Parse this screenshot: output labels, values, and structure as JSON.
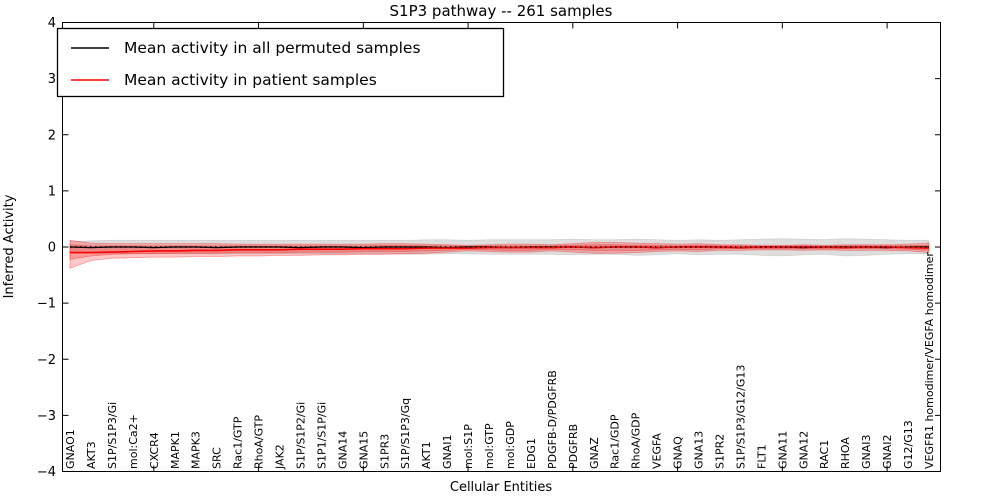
{
  "title": "S1P3 pathway -- 261 samples",
  "axes": {
    "ylabel": "Inferred Activity",
    "xlabel": "Cellular Entities",
    "yticks": [
      "4",
      "3",
      "2",
      "1",
      "0",
      "−1",
      "−2",
      "−3",
      "−4"
    ],
    "ylim": [
      -4,
      4
    ]
  },
  "legend": {
    "items": [
      {
        "label": "Mean activity in all permuted samples",
        "color": "#000000"
      },
      {
        "label": "Mean activity in patient samples",
        "color": "#ff0000"
      }
    ]
  },
  "colors": {
    "permuted_line": "#000000",
    "patient_line": "#ff0000",
    "permuted_band": "rgba(0,0,0,0.13)",
    "patient_band": "rgba(255,0,0,0.22)",
    "zero_line": "#000000",
    "frame": "#000000",
    "background": "#ffffff"
  },
  "chart_data": {
    "type": "line",
    "title": "S1P3 pathway -- 261 samples",
    "xlabel": "Cellular Entities",
    "ylabel": "Inferred Activity",
    "ylim": [
      -4,
      4
    ],
    "grid": false,
    "legend_position": "upper left",
    "zero_line": {
      "style": "dotted",
      "color": "#000000",
      "y": 0
    },
    "categories": [
      "GNAO1",
      "AKT3",
      "S1P/S1P3/Gi",
      "mol:Ca2+",
      "CXCR4",
      "MAPK1",
      "MAPK3",
      "SRC",
      "Rac1/GTP",
      "RhoA/GTP",
      "JAK2",
      "S1P/S1P2/Gi",
      "S1P1/S1P/Gi",
      "GNA14",
      "GNA15",
      "S1PR3",
      "S1P/S1P3/Gq",
      "AKT1",
      "GNAI1",
      "mol:S1P",
      "mol:GTP",
      "mol:GDP",
      "EDG1",
      "PDGFB-D/PDGFRB",
      "PDGFRB",
      "GNAZ",
      "Rac1/GDP",
      "RhoA/GDP",
      "VEGFA",
      "GNAQ",
      "GNA13",
      "S1PR2",
      "S1P/S1P3/G12/G13",
      "FLT1",
      "GNA11",
      "GNA12",
      "RAC1",
      "RHOA",
      "GNAI3",
      "GNAI2",
      "G12/G13",
      "VEGFR1 homodimer/VEGFA homodimer"
    ],
    "series": [
      {
        "name": "Mean activity in all permuted samples",
        "color": "#000000",
        "values": [
          0,
          -0.01,
          0,
          0,
          -0.01,
          0,
          0,
          -0.01,
          0,
          0,
          0,
          -0.01,
          0,
          0,
          -0.01,
          0,
          0,
          0,
          -0.01,
          0,
          0,
          -0.01,
          0,
          0,
          0,
          -0.01,
          0,
          0,
          -0.01,
          0,
          0,
          0,
          -0.01,
          0,
          0,
          -0.01,
          0,
          0,
          0,
          -0.01,
          0,
          0
        ]
      },
      {
        "name": "Mean activity in patient samples",
        "color": "#ff0000",
        "values": [
          -0.1,
          -0.1,
          -0.09,
          -0.08,
          -0.07,
          -0.07,
          -0.06,
          -0.06,
          -0.05,
          -0.05,
          -0.05,
          -0.04,
          -0.04,
          -0.04,
          -0.03,
          -0.03,
          -0.03,
          -0.02,
          -0.02,
          -0.02,
          -0.01,
          -0.01,
          -0.01,
          -0.01,
          0,
          -0.01,
          0,
          0,
          -0.01,
          0,
          0,
          0,
          -0.01,
          0,
          0,
          0,
          0,
          -0.01,
          0,
          0,
          -0.01,
          -0.02
        ]
      }
    ],
    "bands": [
      {
        "name": "permuted-samples-std-band",
        "color": "rgba(0,0,0,0.13)",
        "edge": "rgba(0,0,0,0.10)",
        "upper": [
          0.1,
          0.11,
          0.12,
          0.12,
          0.12,
          0.12,
          0.12,
          0.12,
          0.12,
          0.12,
          0.12,
          0.12,
          0.12,
          0.12,
          0.12,
          0.12,
          0.12,
          0.13,
          0.13,
          0.12,
          0.13,
          0.13,
          0.13,
          0.13,
          0.14,
          0.13,
          0.13,
          0.14,
          0.13,
          0.12,
          0.13,
          0.12,
          0.13,
          0.14,
          0.15,
          0.14,
          0.13,
          0.15,
          0.14,
          0.13,
          0.12,
          0.12
        ],
        "lower": [
          -0.1,
          -0.11,
          -0.12,
          -0.12,
          -0.12,
          -0.12,
          -0.12,
          -0.12,
          -0.12,
          -0.12,
          -0.12,
          -0.12,
          -0.12,
          -0.12,
          -0.12,
          -0.12,
          -0.13,
          -0.13,
          -0.12,
          -0.12,
          -0.13,
          -0.13,
          -0.13,
          -0.13,
          -0.14,
          -0.13,
          -0.13,
          -0.15,
          -0.14,
          -0.12,
          -0.14,
          -0.13,
          -0.13,
          -0.15,
          -0.16,
          -0.14,
          -0.13,
          -0.16,
          -0.15,
          -0.13,
          -0.12,
          -0.12
        ]
      },
      {
        "name": "patient-samples-std-band-outer",
        "color": "rgba(255,0,0,0.22)",
        "edge": "rgba(255,0,0,0.35)",
        "upper": [
          0.12,
          0.07,
          0.06,
          0.06,
          0.06,
          0.06,
          0.06,
          0.06,
          0.05,
          0.05,
          0.05,
          0.05,
          0.05,
          0.05,
          0.05,
          0.06,
          0.06,
          0.05,
          0.04,
          0.03,
          0.04,
          0.05,
          0.05,
          0.04,
          0.06,
          0.08,
          0.08,
          0.07,
          0.06,
          0.05,
          0.06,
          0.04,
          0.04,
          0.03,
          0.03,
          0.04,
          0.03,
          0.04,
          0.04,
          0.04,
          0.05,
          0.07
        ],
        "lower": [
          -0.38,
          -0.24,
          -0.2,
          -0.19,
          -0.18,
          -0.18,
          -0.17,
          -0.17,
          -0.16,
          -0.16,
          -0.15,
          -0.15,
          -0.14,
          -0.14,
          -0.13,
          -0.13,
          -0.12,
          -0.11,
          -0.09,
          -0.07,
          -0.08,
          -0.09,
          -0.09,
          -0.07,
          -0.09,
          -0.11,
          -0.11,
          -0.1,
          -0.08,
          -0.07,
          -0.08,
          -0.06,
          -0.06,
          -0.05,
          -0.05,
          -0.06,
          -0.05,
          -0.06,
          -0.06,
          -0.06,
          -0.07,
          -0.1
        ]
      },
      {
        "name": "patient-samples-std-band-inner",
        "color": "rgba(255,0,0,0.22)",
        "edge": "rgba(255,0,0,0.35)",
        "upper": [
          0.04,
          0.02,
          0.02,
          0.02,
          0.02,
          0.02,
          0.02,
          0.02,
          0.02,
          0.02,
          0.02,
          0.02,
          0.02,
          0.02,
          0.02,
          0.03,
          0.03,
          0.02,
          0.02,
          0.01,
          0.02,
          0.02,
          0.02,
          0.02,
          0.03,
          0.04,
          0.04,
          0.03,
          0.03,
          0.02,
          0.03,
          0.02,
          0.02,
          0.01,
          0.01,
          0.02,
          0.01,
          0.02,
          0.02,
          0.02,
          0.02,
          0.03
        ],
        "lower": [
          -0.22,
          -0.16,
          -0.13,
          -0.12,
          -0.12,
          -0.11,
          -0.11,
          -0.11,
          -0.1,
          -0.1,
          -0.1,
          -0.09,
          -0.09,
          -0.09,
          -0.08,
          -0.08,
          -0.08,
          -0.07,
          -0.06,
          -0.04,
          -0.05,
          -0.06,
          -0.06,
          -0.04,
          -0.05,
          -0.06,
          -0.06,
          -0.06,
          -0.05,
          -0.04,
          -0.05,
          -0.03,
          -0.03,
          -0.03,
          -0.03,
          -0.03,
          -0.03,
          -0.03,
          -0.03,
          -0.03,
          -0.04,
          -0.06
        ]
      }
    ],
    "x_major_tick_indices": [
      4,
      9,
      14,
      19,
      24,
      29,
      34,
      39
    ]
  }
}
